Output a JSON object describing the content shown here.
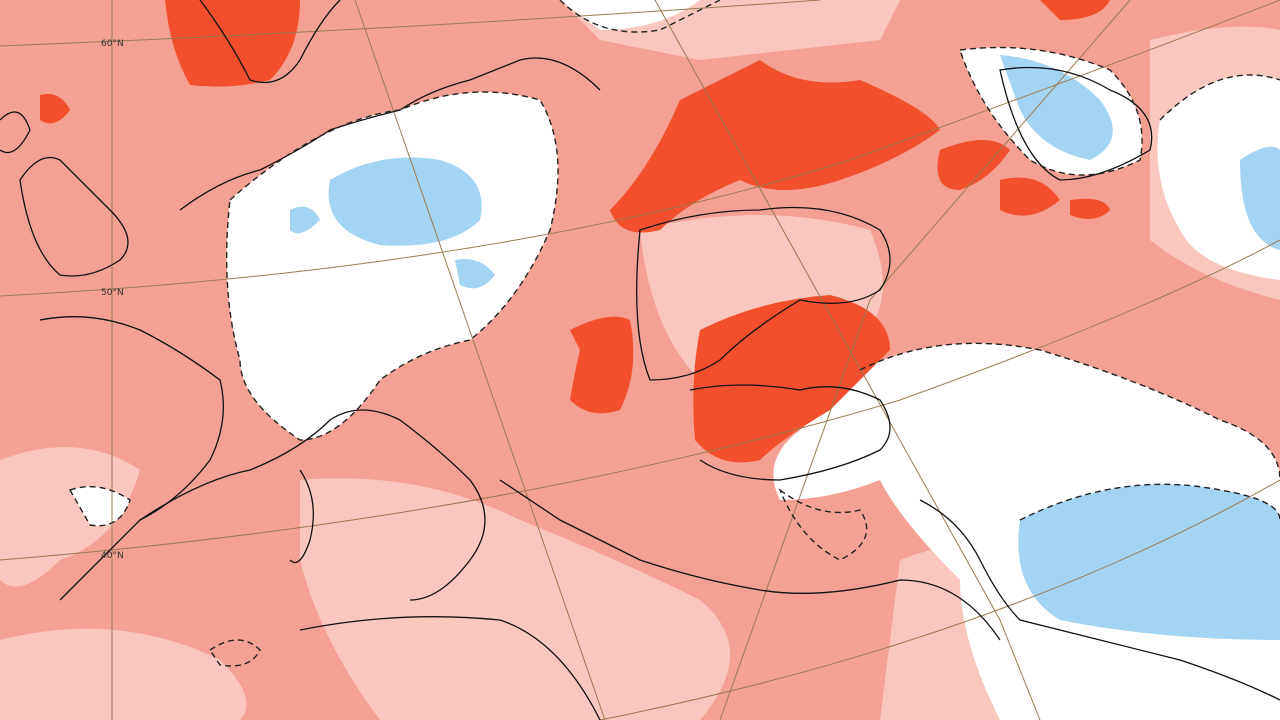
{
  "latitude_labels": [
    "60°N",
    "50°N",
    "40°N"
  ]
}
